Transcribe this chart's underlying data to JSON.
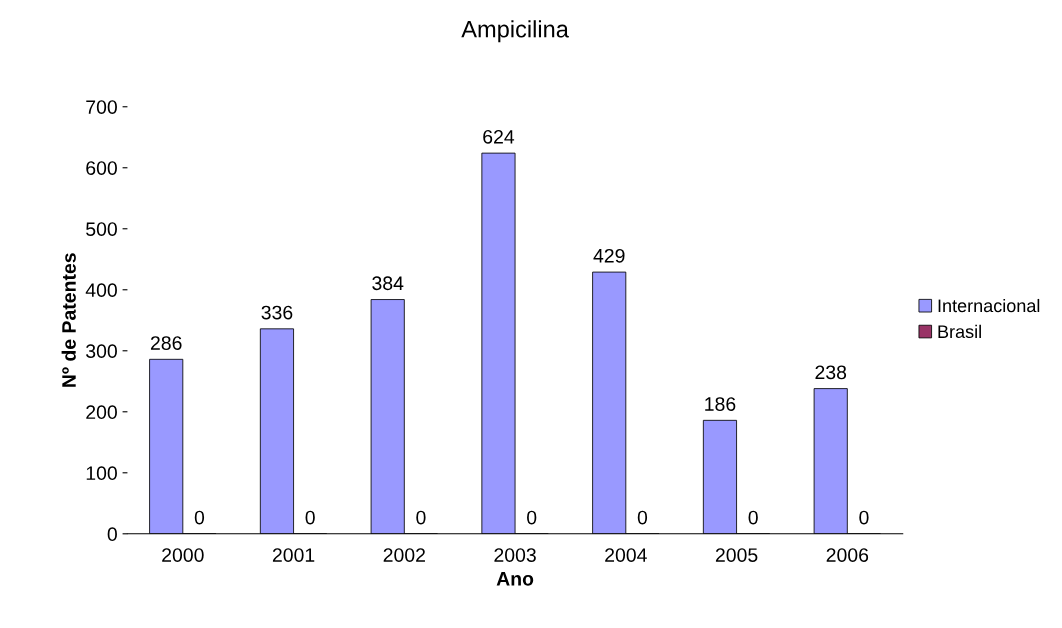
{
  "chart_data": {
    "type": "bar",
    "title": "Ampicilina",
    "xlabel": "Ano",
    "ylabel": "Nº de Patentes",
    "categories": [
      "2000",
      "2001",
      "2002",
      "2003",
      "2004",
      "2005",
      "2006"
    ],
    "series": [
      {
        "name": "Internacional",
        "color": "#9999ff",
        "values": [
          286,
          336,
          384,
          624,
          429,
          186,
          238
        ]
      },
      {
        "name": "Brasil",
        "color": "#993366",
        "values": [
          0,
          0,
          0,
          0,
          0,
          0,
          0
        ]
      }
    ],
    "ylim": [
      0,
      700
    ],
    "yticks": [
      0,
      100,
      200,
      300,
      400,
      500,
      600,
      700
    ],
    "data_labels": true,
    "grid": false,
    "legend": "right"
  }
}
